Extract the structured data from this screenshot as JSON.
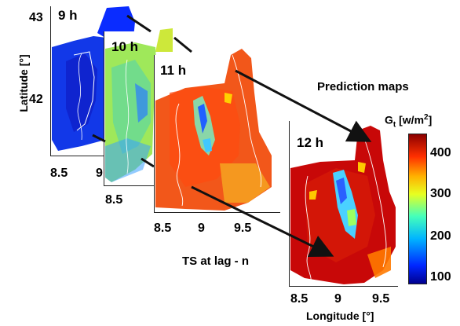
{
  "lat_axis": {
    "label": "Latitude [°]",
    "ticks": [
      "43",
      "42"
    ]
  },
  "lon_axis": {
    "label": "Longitude [°]",
    "ticks": [
      "8.5",
      "9",
      "9.5"
    ]
  },
  "panels": [
    {
      "hour": "9 h",
      "visible_ticks": [
        "8.5",
        "9"
      ]
    },
    {
      "hour": "10 h",
      "visible_ticks": [
        "8.5"
      ]
    },
    {
      "hour": "11 h",
      "visible_ticks": [
        "8.5",
        "9",
        "9.5"
      ]
    },
    {
      "hour": "12 h",
      "visible_ticks": [
        "8.5",
        "9",
        "9.5"
      ]
    }
  ],
  "prediction_label": "Prediction maps",
  "ts_label": "TS at lag - n",
  "colorbar": {
    "label_main": "G",
    "label_sub": "t",
    "label_unit": "[w/m",
    "label_sup": "2",
    "label_close": "]",
    "ticks": [
      "400",
      "300",
      "200",
      "100"
    ],
    "colors": [
      "#8b0000",
      "#d70000",
      "#ff3000",
      "#ff7a00",
      "#ffc800",
      "#f2ff1a",
      "#9cff63",
      "#44ffbb",
      "#00d6ff",
      "#0080ff",
      "#0026ff",
      "#00008f"
    ]
  }
}
